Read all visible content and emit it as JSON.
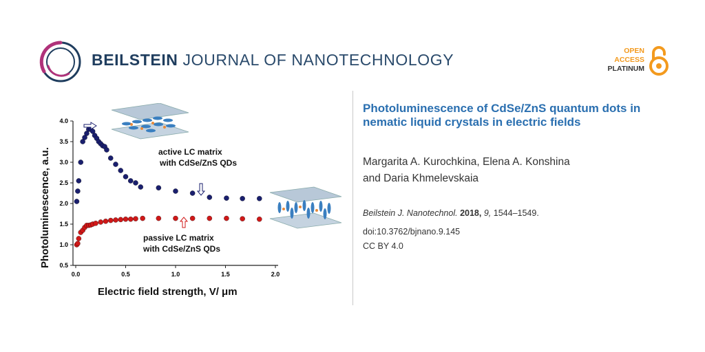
{
  "header": {
    "journal_bold": "BEILSTEIN",
    "journal_rest": " JOURNAL OF NANOTECHNOLOGY",
    "oa_line1": "OPEN",
    "oa_line2": "ACCESS",
    "oa_line3": "PLATINUM",
    "colors": {
      "brand_navy": "#1f3d5e",
      "brand_magenta": "#b0327a",
      "oa_orange": "#f39a1e"
    }
  },
  "article": {
    "title": "Photoluminescence of CdSe/ZnS quantum dots in nematic liquid crystals in electric fields",
    "authors_line1": "Margarita A. Kurochkina, Elena A. Konshina",
    "authors_line2": "and Daria Khmelevskaia",
    "journal_abbrev": "Beilstein J. Nanotechnol.",
    "year": "2018,",
    "volume": "9,",
    "pages": "1544–1549.",
    "doi": "doi:10.3762/bjnano.9.145",
    "license": "CC BY 4.0",
    "colors": {
      "title": "#2a6fb0"
    }
  },
  "chart_data": {
    "type": "scatter",
    "xlabel": "Electric field strength, V/ μm",
    "ylabel": "Photoluminescence, a.u.",
    "xlim": [
      0.0,
      2.0
    ],
    "ylim": [
      0.5,
      4.0
    ],
    "x_ticks": [
      "0.0",
      "0.5",
      "1.0",
      "1.5",
      "2.0"
    ],
    "y_ticks": [
      "0.5",
      "1.0",
      "1.5",
      "2.0",
      "2.5",
      "3.0",
      "3.5",
      "4.0"
    ],
    "series": [
      {
        "color": "#1a1f6e",
        "x": [
          0.01,
          0.02,
          0.03,
          0.05,
          0.07,
          0.09,
          0.11,
          0.13,
          0.15,
          0.17,
          0.19,
          0.21,
          0.23,
          0.25,
          0.27,
          0.29,
          0.31,
          0.35,
          0.4,
          0.45,
          0.5,
          0.55,
          0.6,
          0.65,
          0.83,
          1.0,
          1.17,
          1.34,
          1.51,
          1.67,
          1.84
        ],
        "y": [
          2.05,
          2.3,
          2.55,
          3.0,
          3.5,
          3.6,
          3.7,
          3.8,
          3.8,
          3.75,
          3.65,
          3.58,
          3.5,
          3.45,
          3.4,
          3.38,
          3.3,
          3.1,
          2.95,
          2.8,
          2.65,
          2.55,
          2.5,
          2.4,
          2.38,
          2.3,
          2.25,
          2.15,
          2.13,
          2.12,
          2.12
        ]
      },
      {
        "color": "#d01818",
        "x": [
          0.01,
          0.02,
          0.03,
          0.05,
          0.07,
          0.09,
          0.11,
          0.13,
          0.15,
          0.17,
          0.2,
          0.25,
          0.3,
          0.35,
          0.4,
          0.45,
          0.5,
          0.55,
          0.6,
          0.67,
          0.83,
          1.0,
          1.17,
          1.34,
          1.51,
          1.67,
          1.84
        ],
        "y": [
          1.0,
          1.03,
          1.15,
          1.3,
          1.35,
          1.42,
          1.47,
          1.47,
          1.48,
          1.5,
          1.52,
          1.55,
          1.57,
          1.59,
          1.6,
          1.61,
          1.62,
          1.62,
          1.63,
          1.64,
          1.64,
          1.64,
          1.64,
          1.64,
          1.64,
          1.63,
          1.62
        ]
      }
    ],
    "annotations": [
      {
        "text_line1": "active LC matrix",
        "text_line2": "with CdSe/ZnS QDs"
      },
      {
        "text_line1": "passive LC matrix",
        "text_line2": "with CdSe/ZnS QDs"
      }
    ]
  }
}
